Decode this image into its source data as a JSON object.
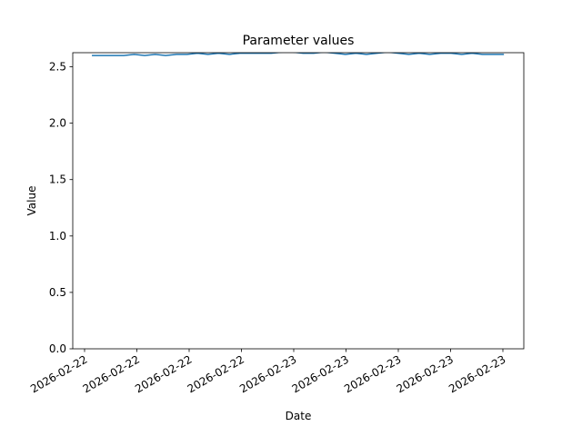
{
  "chart_data": {
    "type": "line",
    "title": "Parameter values",
    "x_label": "Date",
    "y_label": "Value",
    "x": [
      0.14,
      0.34,
      0.54,
      0.75,
      0.95,
      1.15,
      1.35,
      1.55,
      1.76,
      1.96,
      2.16,
      2.36,
      2.56,
      2.77,
      2.97,
      3.17,
      3.37,
      3.57,
      3.78,
      3.98,
      4.18,
      4.38,
      4.58,
      4.79,
      4.99,
      5.19,
      5.39,
      5.59,
      5.8,
      6.0,
      6.2,
      6.4,
      6.6,
      6.81,
      7.01,
      7.21,
      7.41,
      7.61,
      7.82,
      8.02
    ],
    "series": [
      {
        "color": "#1f77b4",
        "values": [
          2.6,
          2.6,
          2.6,
          2.6,
          2.61,
          2.6,
          2.61,
          2.6,
          2.61,
          2.61,
          2.62,
          2.61,
          2.62,
          2.61,
          2.62,
          2.62,
          2.62,
          2.62,
          2.63,
          2.63,
          2.62,
          2.62,
          2.63,
          2.62,
          2.61,
          2.62,
          2.61,
          2.62,
          2.63,
          2.62,
          2.61,
          2.62,
          2.61,
          2.62,
          2.62,
          2.61,
          2.62,
          2.61,
          2.61,
          2.61
        ]
      }
    ],
    "xlim": [
      -0.226,
      8.4
    ],
    "xticks": [
      {
        "value": 0,
        "label": "2026-02-22"
      },
      {
        "value": 1,
        "label": "2026-02-22"
      },
      {
        "value": 2,
        "label": "2026-02-22"
      },
      {
        "value": 3,
        "label": "2026-02-22"
      },
      {
        "value": 4,
        "label": "2026-02-23"
      },
      {
        "value": 5,
        "label": "2026-02-23"
      },
      {
        "value": 6,
        "label": "2026-02-23"
      },
      {
        "value": 7,
        "label": "2026-02-23"
      },
      {
        "value": 8,
        "label": "2026-02-23"
      }
    ],
    "ylim": [
      0,
      2.625
    ],
    "yticks": [
      {
        "value": 0,
        "label": "0.0"
      },
      {
        "value": 0.5,
        "label": "0.5"
      },
      {
        "value": 1,
        "label": "1.0"
      },
      {
        "value": 1.5,
        "label": "1.5"
      },
      {
        "value": 2,
        "label": "2.0"
      },
      {
        "value": 2.5,
        "label": "2.5"
      }
    ]
  }
}
